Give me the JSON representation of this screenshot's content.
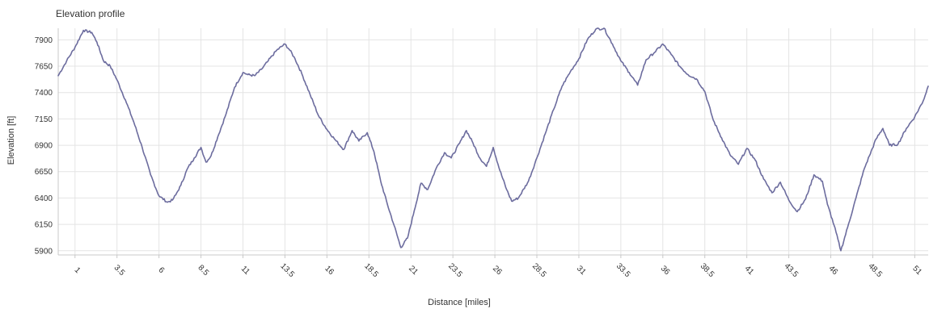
{
  "chart_data": {
    "type": "line",
    "title": "Elevation profile",
    "xlabel": "Distance [miles]",
    "ylabel": "Elevation [ft]",
    "xlim": [
      0,
      51.8
    ],
    "ylim": [
      5860,
      8010
    ],
    "x_ticks": [
      1,
      3.5,
      6,
      8.5,
      11,
      13.5,
      16,
      18.5,
      21,
      23.5,
      26,
      28.5,
      31,
      33.5,
      36,
      38.5,
      41,
      43.5,
      46,
      48.5,
      51
    ],
    "x_tick_labels": [
      "1",
      "3.5",
      "6",
      "8.5",
      "11",
      "13.5",
      "16",
      "18.5",
      "21",
      "23.5",
      "26",
      "28.5",
      "31",
      "33.5",
      "36",
      "38.5",
      "41",
      "43.5",
      "46",
      "48.5",
      "51"
    ],
    "y_ticks": [
      5900,
      6150,
      6400,
      6650,
      6900,
      7150,
      7400,
      7650,
      7900
    ],
    "y_tick_labels": [
      "5900",
      "6150",
      "6400",
      "6650",
      "6900",
      "7150",
      "7400",
      "7650",
      "7900"
    ],
    "grid": true,
    "legend": "none",
    "series": [
      {
        "color": "#6c6c9e",
        "x": [
          0,
          0.5,
          1.0,
          1.5,
          2.0,
          2.3,
          2.7,
          3.1,
          3.5,
          4.0,
          4.5,
          5.0,
          5.5,
          6.0,
          6.5,
          6.8,
          7.0,
          7.3,
          7.7,
          8.1,
          8.5,
          8.8,
          9.1,
          9.5,
          10.0,
          10.5,
          11.0,
          11.3,
          11.7,
          12.1,
          12.5,
          13.0,
          13.5,
          13.8,
          14.1,
          14.5,
          15.0,
          15.5,
          16.0,
          16.5,
          17.0,
          17.5,
          17.9,
          18.4,
          18.8,
          19.2,
          19.6,
          20.0,
          20.4,
          20.8,
          21.2,
          21.6,
          22.0,
          22.5,
          23.0,
          23.4,
          23.9,
          24.3,
          24.7,
          25.1,
          25.5,
          25.9,
          26.3,
          26.7,
          27.0,
          27.4,
          28.0,
          28.5,
          29.0,
          29.5,
          30.0,
          30.5,
          31.0,
          31.5,
          32.0,
          32.5,
          33.0,
          33.5,
          34.0,
          34.5,
          35.0,
          35.5,
          36.0,
          36.5,
          37.0,
          37.5,
          38.0,
          38.5,
          39.0,
          39.5,
          40.0,
          40.5,
          41.0,
          41.5,
          42.0,
          42.5,
          43.0,
          43.5,
          44.0,
          44.5,
          45.0,
          45.5,
          45.8,
          46.2,
          46.6,
          47.0,
          47.5,
          48.0,
          48.3,
          48.7,
          49.1,
          49.5,
          50.0,
          50.5,
          51.0,
          51.5,
          51.8
        ],
        "y": [
          7560,
          7700,
          7830,
          7990,
          7970,
          7880,
          7700,
          7650,
          7520,
          7330,
          7120,
          6880,
          6620,
          6420,
          6360,
          6380,
          6430,
          6520,
          6680,
          6780,
          6880,
          6740,
          6800,
          6980,
          7200,
          7450,
          7590,
          7570,
          7560,
          7620,
          7700,
          7800,
          7860,
          7800,
          7720,
          7580,
          7380,
          7180,
          7050,
          6950,
          6860,
          7040,
          6940,
          7020,
          6840,
          6560,
          6340,
          6140,
          5930,
          6020,
          6280,
          6540,
          6480,
          6680,
          6830,
          6780,
          6920,
          7040,
          6920,
          6780,
          6700,
          6880,
          6660,
          6480,
          6370,
          6400,
          6560,
          6780,
          7010,
          7240,
          7460,
          7600,
          7720,
          7900,
          8000,
          8010,
          7860,
          7700,
          7590,
          7470,
          7710,
          7780,
          7860,
          7760,
          7650,
          7570,
          7530,
          7410,
          7140,
          6970,
          6810,
          6720,
          6870,
          6760,
          6580,
          6450,
          6550,
          6380,
          6270,
          6390,
          6620,
          6560,
          6340,
          6140,
          5900,
          6120,
          6400,
          6680,
          6800,
          6960,
          7060,
          6900,
          6910,
          7060,
          7170,
          7320,
          7460
        ]
      }
    ]
  }
}
